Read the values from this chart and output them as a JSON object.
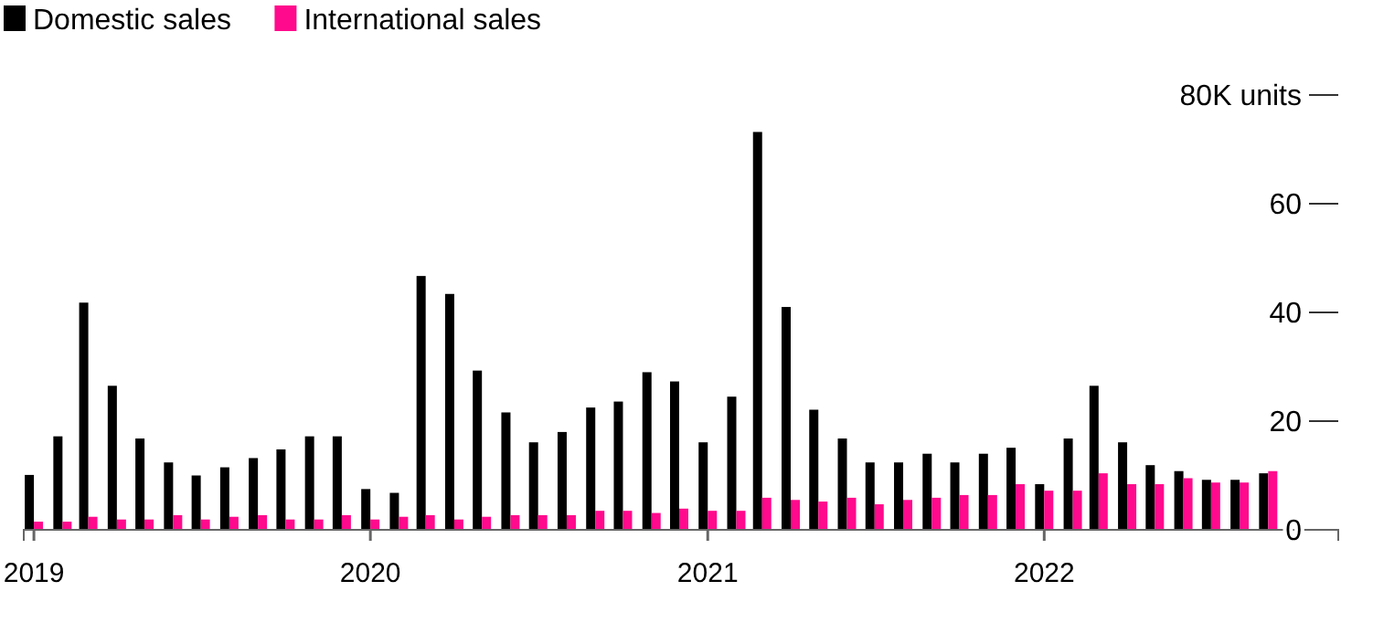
{
  "chart_data": {
    "type": "bar",
    "x": [
      "2019-01",
      "2019-02",
      "2019-03",
      "2019-04",
      "2019-05",
      "2019-06",
      "2019-07",
      "2019-08",
      "2019-09",
      "2019-10",
      "2019-11",
      "2019-12",
      "2020-01",
      "2020-02",
      "2020-03",
      "2020-04",
      "2020-05",
      "2020-06",
      "2020-07",
      "2020-08",
      "2020-09",
      "2020-10",
      "2020-11",
      "2020-12",
      "2021-01",
      "2021-02",
      "2021-03",
      "2021-04",
      "2021-05",
      "2021-06",
      "2021-07",
      "2021-08",
      "2021-09",
      "2021-10",
      "2021-11",
      "2021-12",
      "2022-01",
      "2022-02",
      "2022-03",
      "2022-04",
      "2022-05",
      "2022-06",
      "2022-07",
      "2022-08",
      "2022-09"
    ],
    "series": [
      {
        "name": "Domestic sales",
        "color": "#000000",
        "values": [
          10.1,
          17.2,
          41.8,
          26.5,
          16.8,
          12.4,
          10,
          11.5,
          13.2,
          14.8,
          17.2,
          17.2,
          7.5,
          6.8,
          46.7,
          43.4,
          29.3,
          21.6,
          16.1,
          18,
          22.5,
          23.6,
          29,
          27.3,
          16.1,
          24.5,
          73.2,
          41,
          22.1,
          16.8,
          12.4,
          12.4,
          14,
          12.4,
          14,
          15.1,
          8.4,
          16.8,
          26.5,
          16.1,
          11.9,
          10.8,
          9.2,
          9.2,
          10.4
        ]
      },
      {
        "name": "International sales",
        "color": "#ff0a8c",
        "values": [
          1.5,
          1.5,
          2.4,
          1.9,
          1.9,
          2.7,
          1.9,
          2.4,
          2.7,
          1.9,
          1.9,
          2.7,
          1.9,
          2.4,
          2.7,
          1.9,
          2.4,
          2.7,
          2.7,
          2.7,
          3.5,
          3.5,
          3.1,
          3.9,
          3.5,
          3.5,
          5.9,
          5.5,
          5.2,
          5.9,
          4.7,
          5.5,
          5.9,
          6.4,
          6.4,
          8.4,
          7.2,
          7.2,
          10.4,
          8.4,
          8.4,
          9.5,
          8.7,
          8.7,
          10.8
        ]
      }
    ],
    "xlim": [
      "2018-12-21",
      "2022-11-16"
    ],
    "xticks": [
      {
        "value": "2019-01",
        "label": "2019"
      },
      {
        "value": "2020-01",
        "label": "2020"
      },
      {
        "value": "2021-01",
        "label": "2021"
      },
      {
        "value": "2022-01",
        "label": "2022"
      }
    ],
    "ylim": [
      0,
      80
    ],
    "yticks": [
      {
        "value": 0,
        "label": "0"
      },
      20,
      40,
      60,
      {
        "value": 80,
        "label": "80K units"
      }
    ],
    "legend": "top left"
  }
}
